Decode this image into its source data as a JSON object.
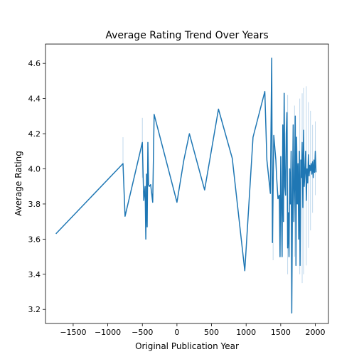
{
  "chart_data": {
    "type": "line",
    "title": "Average Rating Trend Over Years",
    "xlabel": "Original Publication Year",
    "ylabel": "Average Rating",
    "xlim": [
      -1900,
      2190
    ],
    "ylim": [
      3.12,
      4.71
    ],
    "xticks": [
      -1500,
      -1000,
      -500,
      0,
      500,
      1000,
      1500,
      2000
    ],
    "yticks": [
      3.2,
      3.4,
      3.6,
      3.8,
      4.0,
      4.2,
      4.4,
      4.6
    ],
    "grid": false,
    "colors": {
      "line": "#1f77b4",
      "band": "#a6c8e4"
    },
    "series": [
      {
        "x": [
          -1750,
          -780,
          -750,
          -500,
          -480,
          -460,
          -450,
          -440,
          -430,
          -420,
          -410,
          -400,
          -380,
          -350,
          -330,
          0,
          100,
          180,
          400,
          600,
          800,
          980,
          1100,
          1270,
          1300,
          1350,
          1370,
          1380,
          1400,
          1430,
          1440,
          1460,
          1480,
          1490,
          1500,
          1510,
          1520,
          1530,
          1540,
          1550,
          1560,
          1570,
          1580,
          1590,
          1600,
          1610,
          1620,
          1630,
          1640,
          1650,
          1660,
          1670,
          1680,
          1690,
          1700,
          1710,
          1720,
          1730,
          1740,
          1750,
          1760,
          1770,
          1780,
          1790,
          1800,
          1810,
          1820,
          1830,
          1840,
          1850,
          1860,
          1870,
          1880,
          1890,
          1900,
          1910,
          1920,
          1930,
          1940,
          1950,
          1960,
          1970,
          1980,
          1990,
          2000,
          2010
        ],
        "y": [
          3.63,
          4.03,
          3.73,
          4.15,
          3.82,
          3.9,
          3.6,
          3.97,
          3.67,
          4.15,
          3.91,
          3.9,
          3.91,
          3.81,
          4.31,
          3.81,
          4.05,
          4.2,
          3.88,
          4.34,
          4.06,
          3.42,
          4.18,
          4.44,
          4.05,
          3.86,
          4.63,
          3.58,
          4.19,
          4.05,
          3.96,
          3.83,
          3.85,
          3.5,
          4.07,
          3.8,
          3.5,
          4.25,
          3.7,
          4.43,
          3.9,
          3.85,
          4.2,
          4.32,
          3.55,
          3.75,
          3.5,
          4.0,
          3.8,
          4.1,
          3.18,
          3.85,
          4.25,
          3.7,
          3.88,
          4.3,
          3.45,
          4.18,
          3.8,
          4.03,
          3.6,
          4.1,
          3.45,
          4.05,
          3.95,
          4.15,
          3.78,
          4.22,
          3.9,
          3.98,
          4.1,
          3.82,
          4.0,
          3.92,
          4.08,
          3.96,
          4.02,
          3.99,
          4.03,
          3.97,
          4.04,
          3.95,
          4.05,
          3.98,
          4.1,
          3.98
        ]
      }
    ],
    "bands": [
      {
        "x": -780,
        "low": 4.0,
        "high": 4.18
      },
      {
        "x": -500,
        "low": 3.95,
        "high": 4.29
      },
      {
        "x": 1390,
        "low": 3.48,
        "high": 3.86
      },
      {
        "x": 1600,
        "low": 3.4,
        "high": 4.42
      },
      {
        "x": 1700,
        "low": 3.5,
        "high": 4.36
      },
      {
        "x": 1775,
        "low": 3.4,
        "high": 4.4
      },
      {
        "x": 1810,
        "low": 3.35,
        "high": 4.43
      },
      {
        "x": 1830,
        "low": 3.4,
        "high": 4.46
      },
      {
        "x": 1870,
        "low": 3.45,
        "high": 4.47
      },
      {
        "x": 1900,
        "low": 3.55,
        "high": 4.38
      },
      {
        "x": 1930,
        "low": 3.65,
        "high": 4.33
      },
      {
        "x": 1960,
        "low": 3.75,
        "high": 4.25
      },
      {
        "x": 2000,
        "low": 3.85,
        "high": 4.27
      }
    ]
  }
}
